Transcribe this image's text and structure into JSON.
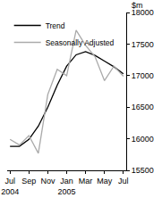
{
  "chart_data": {
    "type": "line",
    "ylabel": "$m",
    "categories": [
      "Jul 2004",
      null,
      "Sep",
      null,
      "Nov",
      null,
      "Jan 2005",
      null,
      "Mar",
      null,
      "May",
      null,
      "Jul"
    ],
    "series": [
      {
        "name": "Trend",
        "color": "#000000",
        "values": [
          15880,
          15880,
          15990,
          16200,
          16500,
          16850,
          17150,
          17330,
          17380,
          17320,
          17230,
          17140,
          17030
        ]
      },
      {
        "name": "Seasonally Adjusted",
        "color": "#aaaaaa",
        "values": [
          15990,
          15900,
          16050,
          15770,
          16700,
          17100,
          17000,
          17720,
          17480,
          17300,
          16920,
          17150,
          16990
        ]
      }
    ],
    "ylim": [
      15500,
      18000
    ],
    "yticks": [
      15500,
      16000,
      16500,
      17000,
      17500,
      18000
    ],
    "grid": false,
    "legend": "top left"
  }
}
